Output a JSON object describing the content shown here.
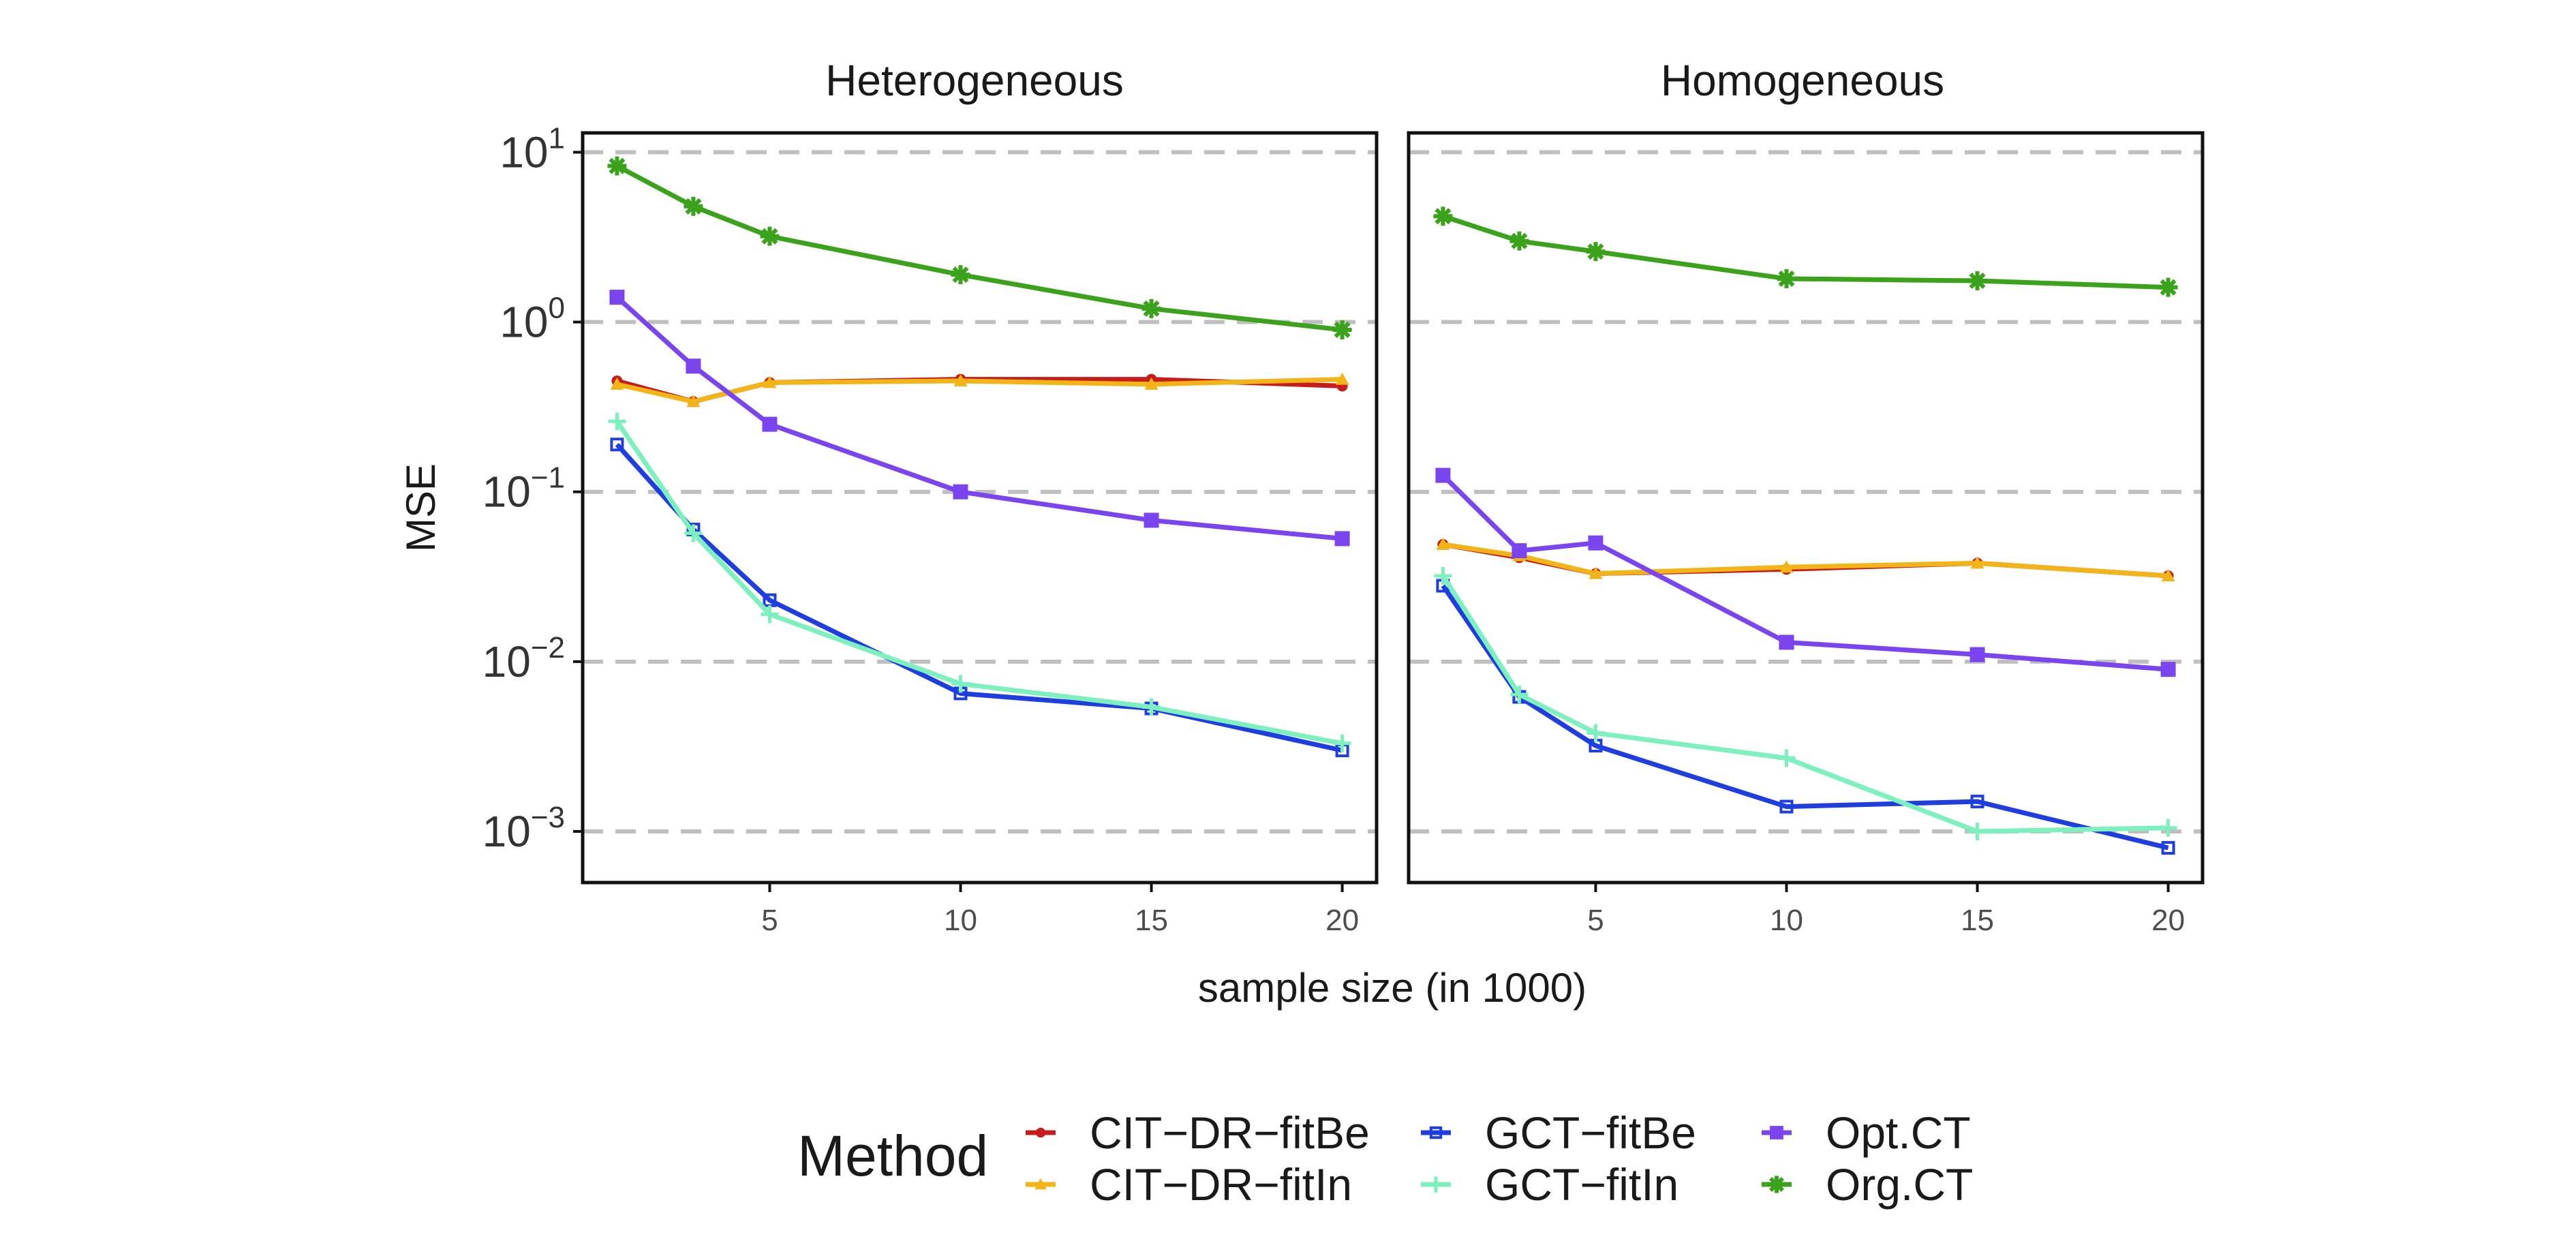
{
  "chart_data": {
    "type": "line",
    "xlabel": "sample size (in 1000)",
    "ylabel": "MSE",
    "x": [
      1,
      3,
      5,
      10,
      15,
      20
    ],
    "x_ticks": [
      5,
      10,
      15,
      20
    ],
    "x_tick_labels": [
      "5",
      "10",
      "15",
      "20"
    ],
    "xlim": [
      0.1,
      20.9
    ],
    "y_scale": "log",
    "ylim": [
      0.0005,
      13
    ],
    "y_ticks": [
      {
        "base": "10",
        "exp": "1",
        "value": 10
      },
      {
        "base": "10",
        "exp": "0",
        "value": 1
      },
      {
        "base": "10",
        "exp": "−1",
        "value": 0.1
      },
      {
        "base": "10",
        "exp": "−2",
        "value": 0.01
      },
      {
        "base": "10",
        "exp": "−3",
        "value": 0.001
      }
    ],
    "grid": {
      "major_y": "dashed",
      "x": false
    },
    "legend": {
      "title": "Method",
      "position": "bottom",
      "layout": "3 columns x 2 rows"
    },
    "panels": [
      {
        "title": "Heterogeneous",
        "series": [
          {
            "name": "CIT−DR−fitBe",
            "values": [
              0.45,
              0.34,
              0.44,
              0.46,
              0.46,
              0.42
            ]
          },
          {
            "name": "CIT−DR−fitIn",
            "values": [
              0.43,
              0.34,
              0.44,
              0.45,
              0.43,
              0.46
            ]
          },
          {
            "name": "GCT−fitBe",
            "values": [
              0.19,
              0.06,
              0.023,
              0.0065,
              0.0053,
              0.003
            ]
          },
          {
            "name": "GCT−fitIn",
            "values": [
              0.26,
              0.057,
              0.019,
              0.0074,
              0.0054,
              0.0033
            ]
          },
          {
            "name": "Opt.CT",
            "values": [
              1.4,
              0.55,
              0.25,
              0.1,
              0.068,
              0.053
            ]
          },
          {
            "name": "Org.CT",
            "values": [
              8.3,
              4.8,
              3.2,
              1.9,
              1.2,
              0.9
            ]
          }
        ]
      },
      {
        "title": "Homogeneous",
        "series": [
          {
            "name": "CIT−DR−fitBe",
            "values": [
              0.049,
              0.041,
              0.033,
              0.035,
              0.038,
              0.032
            ]
          },
          {
            "name": "CIT−DR−fitIn",
            "values": [
              0.049,
              0.042,
              0.033,
              0.036,
              0.038,
              0.032
            ]
          },
          {
            "name": "GCT−fitBe",
            "values": [
              0.028,
              0.0062,
              0.0032,
              0.0014,
              0.0015,
              0.0008
            ]
          },
          {
            "name": "GCT−fitIn",
            "values": [
              0.032,
              0.0064,
              0.0038,
              0.0027,
              0.001,
              0.00105
            ]
          },
          {
            "name": "Opt.CT",
            "values": [
              0.125,
              0.045,
              0.05,
              0.013,
              0.011,
              0.009
            ]
          },
          {
            "name": "Org.CT",
            "values": [
              4.2,
              3.0,
              2.6,
              1.8,
              1.75,
              1.6
            ]
          }
        ]
      }
    ],
    "series_styles": [
      {
        "name": "CIT−DR−fitBe",
        "color": "#c81c1c",
        "marker": "circle"
      },
      {
        "name": "CIT−DR−fitIn",
        "color": "#f2b416",
        "marker": "triangle"
      },
      {
        "name": "GCT−fitBe",
        "color": "#1f3ee0",
        "marker": "square-open"
      },
      {
        "name": "GCT−fitIn",
        "color": "#7cf0bd",
        "marker": "plus"
      },
      {
        "name": "Opt.CT",
        "color": "#7a44ee",
        "marker": "square"
      },
      {
        "name": "Org.CT",
        "color": "#3aa31b",
        "marker": "star"
      }
    ]
  }
}
